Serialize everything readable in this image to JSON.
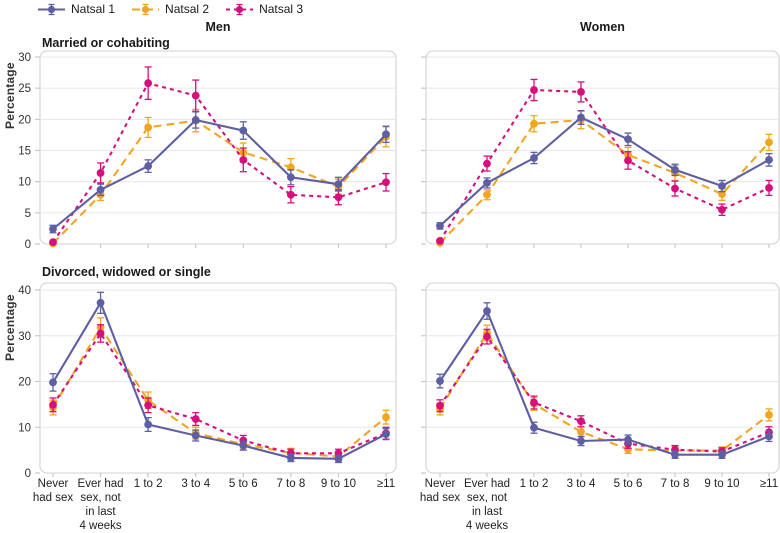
{
  "ylabel": "Percentage",
  "columns": [
    "Men",
    "Women"
  ],
  "legend": [
    {
      "label": "Natsal 1",
      "color": "#5e5fa3",
      "line_style": "solid"
    },
    {
      "label": "Natsal 2",
      "color": "#f2a51e",
      "line_style": "long-dash"
    },
    {
      "label": "Natsal 3",
      "color": "#d60f7d",
      "line_style": "short-dash"
    }
  ],
  "colors": {
    "grid": "#e7e7e7",
    "panel_border": "#d9d9d9",
    "tick": "#c9c9c9",
    "tick_text": "#333333"
  },
  "category_label_lines": [
    [
      "Never",
      "had sex"
    ],
    [
      "Ever had",
      "sex, not",
      "in last",
      "4 weeks"
    ],
    [
      "1 to 2"
    ],
    [
      "3 to 4"
    ],
    [
      "5 to 6"
    ],
    [
      "7 to 8"
    ],
    [
      "9 to 10"
    ],
    [
      "≥11"
    ]
  ],
  "chart_data": [
    {
      "type": "line",
      "title": "Married or cohabiting",
      "column": "Men",
      "ylabel": "Percentage",
      "ylim": [
        0,
        30
      ],
      "yticks": [
        0,
        5,
        10,
        15,
        20,
        25,
        30
      ],
      "grid": "horizontal",
      "legend_position": "top-left",
      "categories": [
        "Never had sex",
        "Ever had sex, not in last 4 weeks",
        "1 to 2",
        "3 to 4",
        "5 to 6",
        "7 to 8",
        "9 to 10",
        "≥11"
      ],
      "series": [
        {
          "name": "Natsal 1",
          "values": [
            2.4,
            8.7,
            12.5,
            19.9,
            18.2,
            10.7,
            9.6,
            17.6
          ],
          "errors": [
            0.6,
            0.9,
            1.0,
            1.3,
            1.4,
            1.2,
            1.1,
            1.3
          ]
        },
        {
          "name": "Natsal 2",
          "values": [
            0.1,
            7.9,
            18.7,
            19.8,
            14.7,
            12.3,
            9.2,
            17.2
          ],
          "errors": [
            0.2,
            0.9,
            1.6,
            1.8,
            1.5,
            1.4,
            1.2,
            1.6
          ]
        },
        {
          "name": "Natsal 3",
          "values": [
            0.3,
            11.4,
            25.8,
            23.8,
            13.5,
            7.9,
            7.5,
            9.9
          ],
          "errors": [
            0.2,
            1.6,
            2.6,
            2.5,
            1.9,
            1.3,
            1.2,
            1.4
          ]
        }
      ]
    },
    {
      "type": "line",
      "title": "Married or cohabiting",
      "column": "Women",
      "ylabel": "Percentage",
      "ylim": [
        0,
        30
      ],
      "yticks": [
        0,
        5,
        10,
        15,
        20,
        25,
        30
      ],
      "grid": "horizontal",
      "legend_position": "top-left",
      "categories": [
        "Never had sex",
        "Ever had sex, not in last 4 weeks",
        "1 to 2",
        "3 to 4",
        "5 to 6",
        "7 to 8",
        "9 to 10",
        "≥11"
      ],
      "series": [
        {
          "name": "Natsal 1",
          "values": [
            2.9,
            9.8,
            13.8,
            20.3,
            16.8,
            11.9,
            9.3,
            13.5
          ],
          "errors": [
            0.5,
            0.8,
            0.9,
            1.1,
            1.0,
            0.9,
            0.9,
            1.0
          ]
        },
        {
          "name": "Natsal 2",
          "values": [
            0.2,
            7.9,
            19.3,
            19.9,
            14.3,
            11.4,
            8.0,
            16.3
          ],
          "errors": [
            0.1,
            0.8,
            1.3,
            1.4,
            1.2,
            1.2,
            1.0,
            1.3
          ]
        },
        {
          "name": "Natsal 3",
          "values": [
            0.5,
            12.9,
            24.7,
            24.4,
            13.4,
            8.9,
            5.5,
            9.0
          ],
          "errors": [
            0.2,
            1.2,
            1.7,
            1.6,
            1.4,
            1.2,
            0.9,
            1.2
          ]
        }
      ]
    },
    {
      "type": "line",
      "title": "Divorced, widowed or single",
      "column": "Men",
      "ylabel": "Percentage",
      "ylim": [
        0,
        40
      ],
      "yticks": [
        0,
        10,
        20,
        30,
        40
      ],
      "grid": "horizontal",
      "legend_position": "top-left",
      "categories": [
        "Never had sex",
        "Ever had sex, not in last 4 weeks",
        "1 to 2",
        "3 to 4",
        "5 to 6",
        "7 to 8",
        "9 to 10",
        "≥11"
      ],
      "series": [
        {
          "name": "Natsal 1",
          "values": [
            19.8,
            37.2,
            10.6,
            8.2,
            6.0,
            3.3,
            3.1,
            8.5
          ],
          "errors": [
            1.9,
            2.3,
            1.5,
            1.2,
            1.0,
            0.8,
            0.8,
            1.2
          ]
        },
        {
          "name": "Natsal 2",
          "values": [
            14.3,
            31.8,
            15.9,
            8.7,
            6.3,
            4.4,
            3.6,
            12.2
          ],
          "errors": [
            1.6,
            2.1,
            1.8,
            1.3,
            1.1,
            1.0,
            0.9,
            1.5
          ]
        },
        {
          "name": "Natsal 3",
          "values": [
            14.9,
            30.5,
            14.8,
            11.8,
            7.1,
            4.3,
            4.3,
            8.7
          ],
          "errors": [
            1.5,
            1.9,
            1.6,
            1.4,
            1.1,
            0.9,
            0.9,
            1.3
          ]
        }
      ]
    },
    {
      "type": "line",
      "title": "Divorced, widowed or single",
      "column": "Women",
      "ylabel": "Percentage",
      "ylim": [
        0,
        40
      ],
      "yticks": [
        0,
        10,
        20,
        30,
        40
      ],
      "grid": "horizontal",
      "legend_position": "top-left",
      "categories": [
        "Never had sex",
        "Ever had sex, not in last 4 weeks",
        "1 to 2",
        "3 to 4",
        "5 to 6",
        "7 to 8",
        "9 to 10",
        "≥11"
      ],
      "series": [
        {
          "name": "Natsal 1",
          "values": [
            20.1,
            35.4,
            9.9,
            7.0,
            7.3,
            4.0,
            4.0,
            8.0
          ],
          "errors": [
            1.5,
            1.8,
            1.2,
            1.0,
            1.0,
            0.8,
            0.8,
            1.1
          ]
        },
        {
          "name": "Natsal 2",
          "values": [
            14.0,
            30.6,
            15.1,
            9.0,
            5.2,
            4.9,
            4.9,
            12.7
          ],
          "errors": [
            1.3,
            1.7,
            1.4,
            1.1,
            0.9,
            0.9,
            0.8,
            1.3
          ]
        },
        {
          "name": "Natsal 3",
          "values": [
            14.7,
            29.8,
            15.4,
            11.3,
            6.4,
            5.1,
            4.7,
            8.9
          ],
          "errors": [
            1.3,
            1.6,
            1.4,
            1.2,
            1.0,
            0.9,
            0.8,
            1.2
          ]
        }
      ]
    }
  ]
}
